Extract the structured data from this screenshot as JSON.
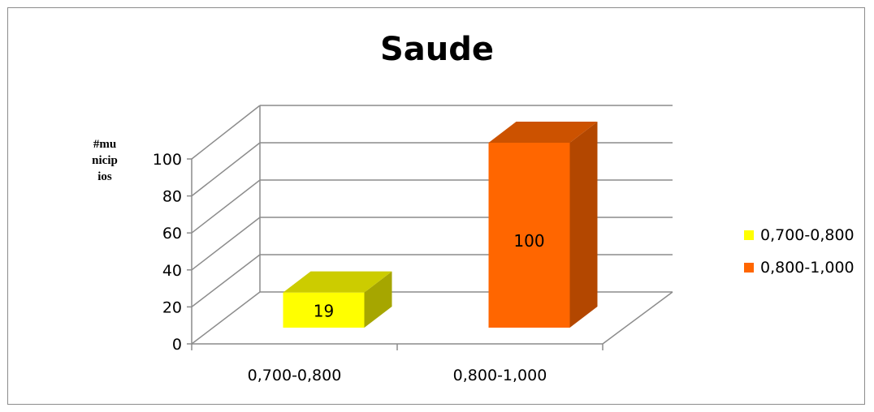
{
  "chart_data": {
    "type": "bar",
    "title": "Saude",
    "ylabel": "#municipios",
    "xlabel": "",
    "categories": [
      "0,700-0,800",
      "0,800-1,000"
    ],
    "values": [
      19,
      100
    ],
    "data_labels": [
      "19",
      "100"
    ],
    "y_ticks": [
      "0",
      "20",
      "40",
      "60",
      "80",
      "100"
    ],
    "ylim": [
      0,
      100
    ],
    "grid": true,
    "three_d": true,
    "legend_position": "right",
    "legend": [
      "0,700-0,800",
      "0,800-1,000"
    ],
    "colors": [
      "#ffff00",
      "#ff6600"
    ],
    "side_colors": [
      "#a6a600",
      "#b34700"
    ],
    "top_colors": [
      "#cccc00",
      "#cc5200"
    ]
  }
}
